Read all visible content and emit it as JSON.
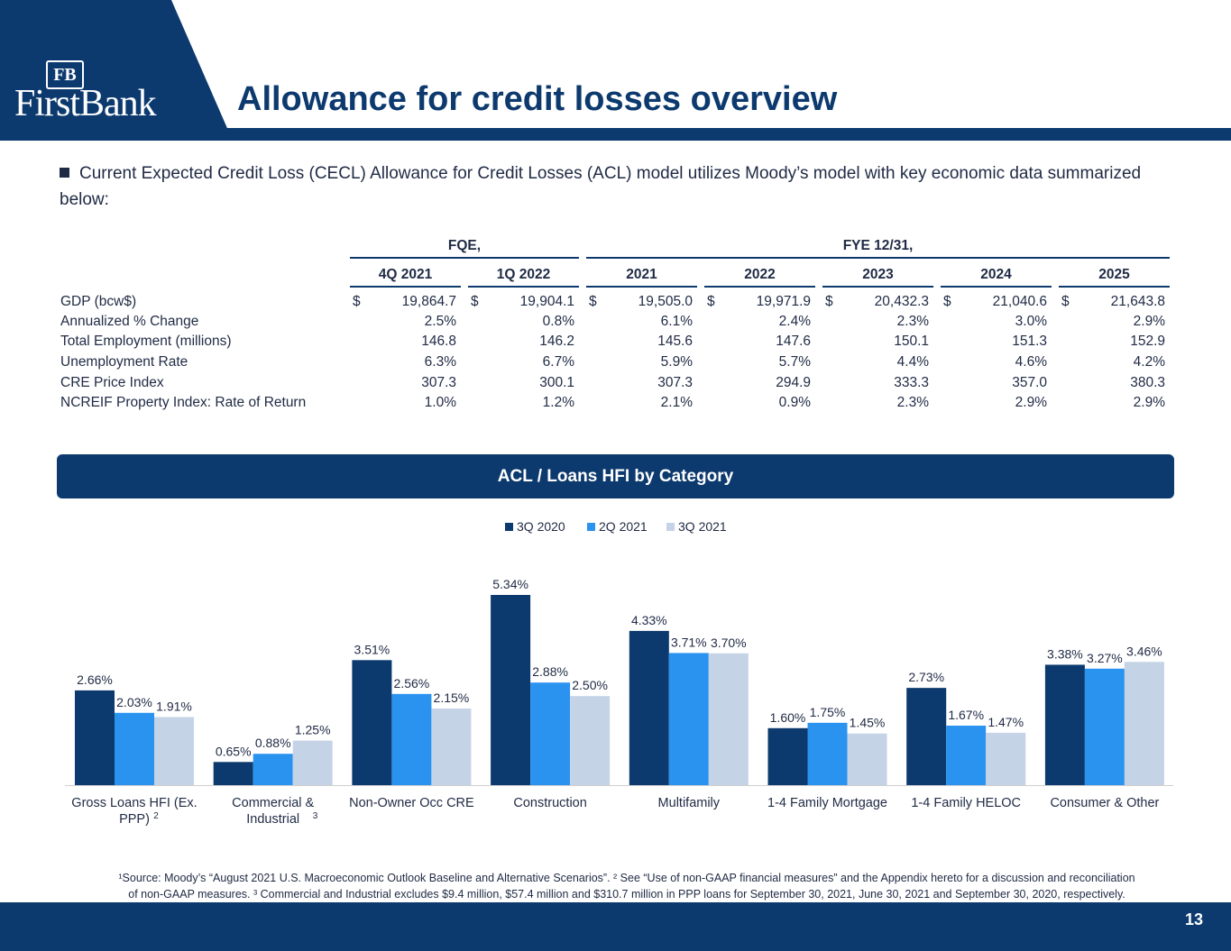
{
  "brand": {
    "monogram": "FB",
    "name": "FirstBank",
    "primary_color": "#0d3a6e"
  },
  "title": "Allowance for credit losses overview",
  "bullet": "Current Expected Credit Loss (CECL) Allowance for Credit Losses (ACL) model utilizes Moody’s model with key economic data summarized below:",
  "table": {
    "group_headers": [
      "FQE,",
      "FYE 12/31,"
    ],
    "columns": [
      "4Q 2021",
      "1Q 2022",
      "2021",
      "2022",
      "2023",
      "2024",
      "2025"
    ],
    "currency_symbol": "$",
    "rows": [
      {
        "label": "GDP (bcw$)",
        "values": [
          "19,864.7",
          "19,904.1",
          "19,505.0",
          "19,971.9",
          "20,432.3",
          "21,040.6",
          "21,643.8"
        ]
      },
      {
        "label": "Annualized % Change",
        "values": [
          "2.5%",
          "0.8%",
          "6.1%",
          "2.4%",
          "2.3%",
          "3.0%",
          "2.9%"
        ]
      },
      {
        "label": "Total Employment (millions)",
        "values": [
          "146.8",
          "146.2",
          "145.6",
          "147.6",
          "150.1",
          "151.3",
          "152.9"
        ]
      },
      {
        "label": "Unemployment Rate",
        "values": [
          "6.3%",
          "6.7%",
          "5.9%",
          "5.7%",
          "4.4%",
          "4.6%",
          "4.2%"
        ]
      },
      {
        "label": "CRE Price Index",
        "values": [
          "307.3",
          "300.1",
          "307.3",
          "294.9",
          "333.3",
          "357.0",
          "380.3"
        ]
      },
      {
        "label": "NCREIF Property Index: Rate of Return",
        "values": [
          "1.0%",
          "1.2%",
          "2.1%",
          "0.9%",
          "2.3%",
          "2.9%",
          "2.9%"
        ]
      }
    ]
  },
  "acl_banner": "ACL / Loans HFI by Category",
  "chart_data": {
    "type": "bar",
    "title": "",
    "legend_position": "top-center",
    "categories": [
      {
        "lines": [
          "Gross Loans HFI (Ex.",
          "PPP)"
        ],
        "sup": "2"
      },
      {
        "lines": [
          "Commercial &",
          "Industrial"
        ],
        "sup": "3"
      },
      {
        "lines": [
          "Non-Owner Occ CRE"
        ],
        "sup": ""
      },
      {
        "lines": [
          "Construction"
        ],
        "sup": ""
      },
      {
        "lines": [
          "Multifamily"
        ],
        "sup": ""
      },
      {
        "lines": [
          "1-4 Family Mortgage"
        ],
        "sup": ""
      },
      {
        "lines": [
          "1-4 Family HELOC"
        ],
        "sup": ""
      },
      {
        "lines": [
          "Consumer & Other"
        ],
        "sup": ""
      }
    ],
    "series": [
      {
        "name": "3Q 2020",
        "color": "#0d3a6e",
        "values": [
          2.66,
          0.65,
          3.51,
          5.34,
          4.33,
          1.6,
          2.73,
          3.38
        ],
        "labels": [
          "2.66%",
          "0.65%",
          "3.51%",
          "5.34%",
          "4.33%",
          "1.60%",
          "2.73%",
          "3.38%"
        ]
      },
      {
        "name": "2Q 2021",
        "color": "#2a93f0",
        "values": [
          2.03,
          0.88,
          2.56,
          2.88,
          3.71,
          1.75,
          1.67,
          3.27
        ],
        "labels": [
          "2.03%",
          "0.88%",
          "2.56%",
          "2.88%",
          "3.71%",
          "1.75%",
          "1.67%",
          "3.27%"
        ]
      },
      {
        "name": "3Q 2021",
        "color": "#c4d3e6",
        "values": [
          1.91,
          1.25,
          2.15,
          2.5,
          3.7,
          1.45,
          1.47,
          3.46
        ],
        "labels": [
          "1.91%",
          "1.25%",
          "2.15%",
          "2.50%",
          "3.70%",
          "1.45%",
          "1.47%",
          "3.46%"
        ]
      }
    ],
    "ylim": [
      0,
      5.34
    ]
  },
  "footnote": {
    "line1": "¹Source: Moody’s “August 2021 U.S. Macroeconomic Outlook Baseline and Alternative Scenarios”. ² See “Use of non-GAAP financial measures” and the Appendix hereto for a discussion and reconciliation",
    "line2": "of non-GAAP measures. ³ Commercial and Industrial excludes $9.4 million, $57.4 million and $310.7 million in PPP loans for September 30, 2021, June 30, 2021 and September 30, 2020, respectively."
  },
  "page_number": "13"
}
